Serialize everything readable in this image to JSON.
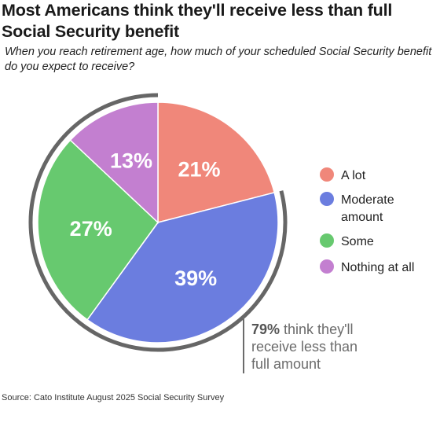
{
  "title": "Most Americans think they'll receive less than full Social Security benefit",
  "subtitle": "When you reach retirement age, how much of your scheduled Social Security benefit do you expect to receive?",
  "source": "Source: Cato Institute August 2025 Social Security Survey",
  "chart_data": {
    "type": "pie",
    "slices": [
      {
        "label": "A lot",
        "value": 21,
        "value_label": "21%",
        "legend_lines": [
          "A lot"
        ],
        "color": "#f0877a"
      },
      {
        "label": "Moderate amount",
        "value": 39,
        "value_label": "39%",
        "legend_lines": [
          "Moderate",
          "amount"
        ],
        "color": "#6b7ddf"
      },
      {
        "label": "Some",
        "value": 27,
        "value_label": "27%",
        "legend_lines": [
          "Some"
        ],
        "color": "#67c96f"
      },
      {
        "label": "Nothing at all",
        "value": 13,
        "value_label": "13%",
        "legend_lines": [
          "Nothing at all"
        ],
        "color": "#c37fd0"
      }
    ],
    "annotation": {
      "bold": "79%",
      "lines": [
        " think they'll",
        "receive less than",
        "full amount"
      ],
      "covers": [
        "Moderate amount",
        "Some",
        "Nothing at all"
      ],
      "color": "#6b6b6b"
    },
    "legend_position": "right"
  }
}
